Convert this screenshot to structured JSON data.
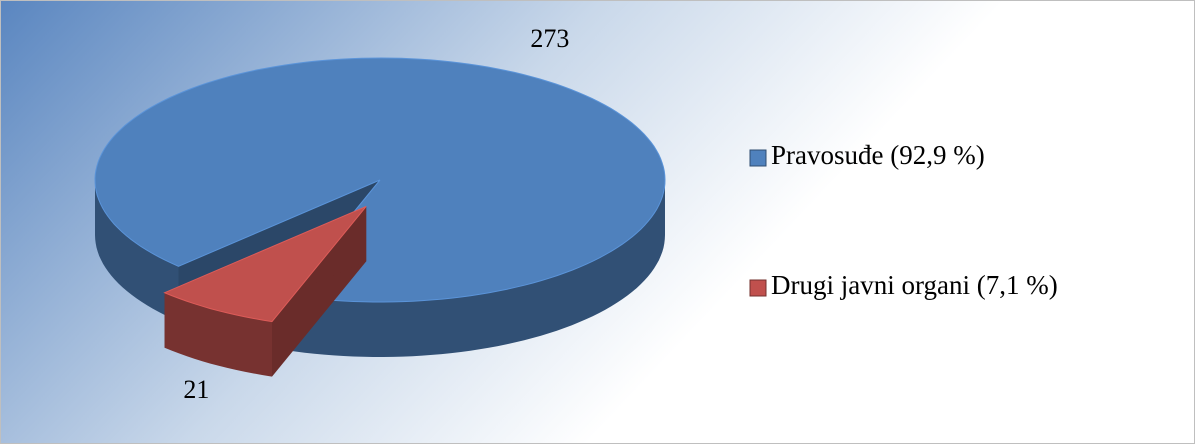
{
  "chart_data": {
    "type": "pie3d",
    "categories": [
      "Pravosuđe (92,9 %)",
      "Drugi javni organi (7,1 %)"
    ],
    "values": [
      273,
      21
    ],
    "colors": [
      "#4f81bd",
      "#c0504d"
    ],
    "legend": "right"
  }
}
